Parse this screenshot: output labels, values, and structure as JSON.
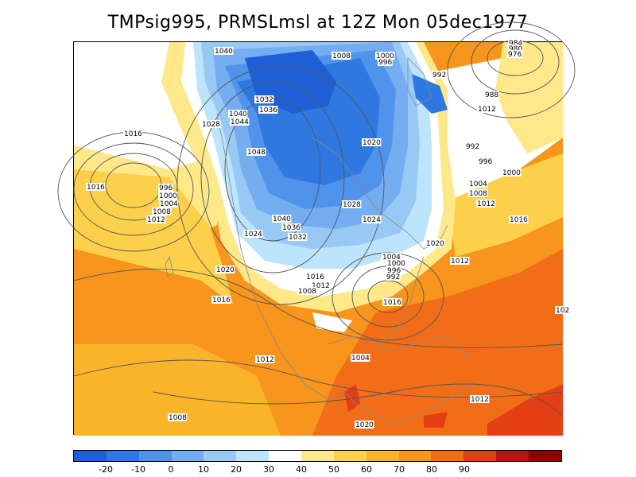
{
  "title": "TMPsig995, PRMSLmsl at 12Z Mon 05dec1977",
  "colorbar": {
    "colors": [
      "#1e5fd6",
      "#2f78e0",
      "#4f93ea",
      "#74aef0",
      "#98c8f4",
      "#bce4fa",
      "#ffffff",
      "#fde88a",
      "#fcd04b",
      "#f9b42a",
      "#f7951c",
      "#f26d18",
      "#e43f14",
      "#bf120e",
      "#8c0000"
    ],
    "tick_labels": [
      "-20",
      "-10",
      "0",
      "10",
      "20",
      "30",
      "40",
      "50",
      "60",
      "70",
      "80",
      "90"
    ]
  },
  "isobar_labels": [
    "1040",
    "1008",
    "1000",
    "996",
    "992",
    "988",
    "984",
    "980",
    "976",
    "1032",
    "1036",
    "1012",
    "1040",
    "1044",
    "1028",
    "1016",
    "1048",
    "1020",
    "992",
    "996",
    "1000",
    "1004",
    "1008",
    "1012",
    "1016",
    "996",
    "1000",
    "1004",
    "1008",
    "1012",
    "1016",
    "1024",
    "1040",
    "1036",
    "1032",
    "1028",
    "1024",
    "1020",
    "1020",
    "1016",
    "1012",
    "1008",
    "1004",
    "1000",
    "996",
    "992",
    "1016",
    "1016",
    "1012",
    "1004",
    "1012",
    "1012",
    "1008",
    "1020",
    "102"
  ]
}
